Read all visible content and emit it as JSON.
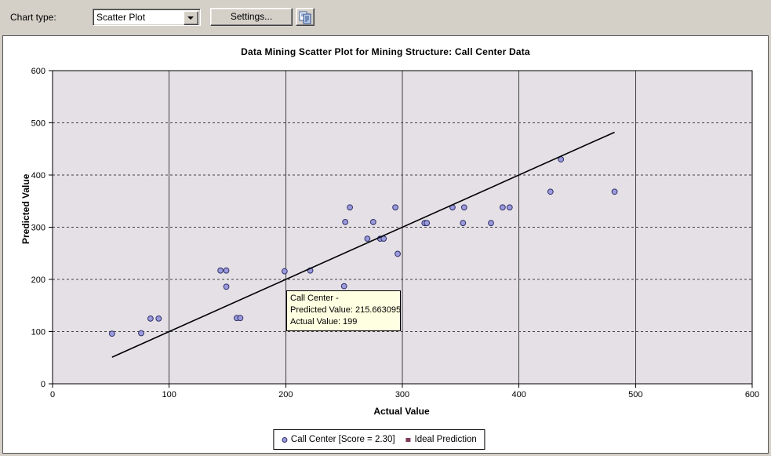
{
  "toolbar": {
    "chart_type_label": "Chart type:",
    "chart_type_value": "Scatter Plot",
    "settings_button_label": "Settings...",
    "copy_icon": "copy-icon"
  },
  "chart_data": {
    "type": "scatter",
    "title": "Data Mining Scatter Plot for Mining Structure: Call Center Data",
    "xlabel": "Actual Value",
    "ylabel": "Predicted Value",
    "xlim": [
      0,
      600
    ],
    "ylim": [
      0,
      600
    ],
    "x_ticks": [
      0,
      100,
      200,
      300,
      400,
      500,
      600
    ],
    "y_ticks": [
      0,
      100,
      200,
      300,
      400,
      500,
      600
    ],
    "grid": {
      "vertical": "solid",
      "horizontal": "dashed"
    },
    "legend_position": "bottom-center",
    "plot_background": "#E4E0E5",
    "series": [
      {
        "name": "Call Center [Score = 2.30]",
        "type": "scatter",
        "marker": "circle",
        "marker_fill": "#9A9ADC",
        "marker_stroke": "#30306A",
        "points": [
          [
            51,
            96
          ],
          [
            76,
            97
          ],
          [
            84,
            125
          ],
          [
            91,
            125
          ],
          [
            144,
            217
          ],
          [
            149,
            217
          ],
          [
            149,
            186
          ],
          [
            158,
            126
          ],
          [
            161,
            126
          ],
          [
            199,
            215.663095
          ],
          [
            221,
            217
          ],
          [
            250,
            187
          ],
          [
            251,
            310
          ],
          [
            255,
            338
          ],
          [
            270,
            278
          ],
          [
            275,
            310
          ],
          [
            281,
            278
          ],
          [
            284,
            278
          ],
          [
            294,
            338
          ],
          [
            296,
            249
          ],
          [
            319,
            308
          ],
          [
            321,
            308
          ],
          [
            343,
            338
          ],
          [
            352,
            308
          ],
          [
            353,
            338
          ],
          [
            376,
            308
          ],
          [
            386,
            338
          ],
          [
            392,
            338
          ],
          [
            427,
            368
          ],
          [
            436,
            430
          ],
          [
            482,
            368
          ]
        ]
      },
      {
        "name": "Ideal Prediction",
        "type": "line",
        "color": "#000000",
        "from": [
          51,
          51
        ],
        "to": [
          482,
          482
        ]
      }
    ]
  },
  "tooltip": {
    "line1": "Call Center -",
    "line2": "Predicted Value: 215.663095",
    "line3": "Actual Value: 199"
  },
  "legend": {
    "series1_label": "Call Center [Score = 2.30]",
    "series2_label": "Ideal Prediction",
    "series1_marker_color": "#9A9ADC",
    "series2_marker_color": "#7E3A5A"
  },
  "colors": {
    "toolbar_background": "#D4D0C8",
    "panel_background": "#FFFFFF",
    "grid_line": "#404040",
    "tooltip_background": "#FFFFE1"
  }
}
